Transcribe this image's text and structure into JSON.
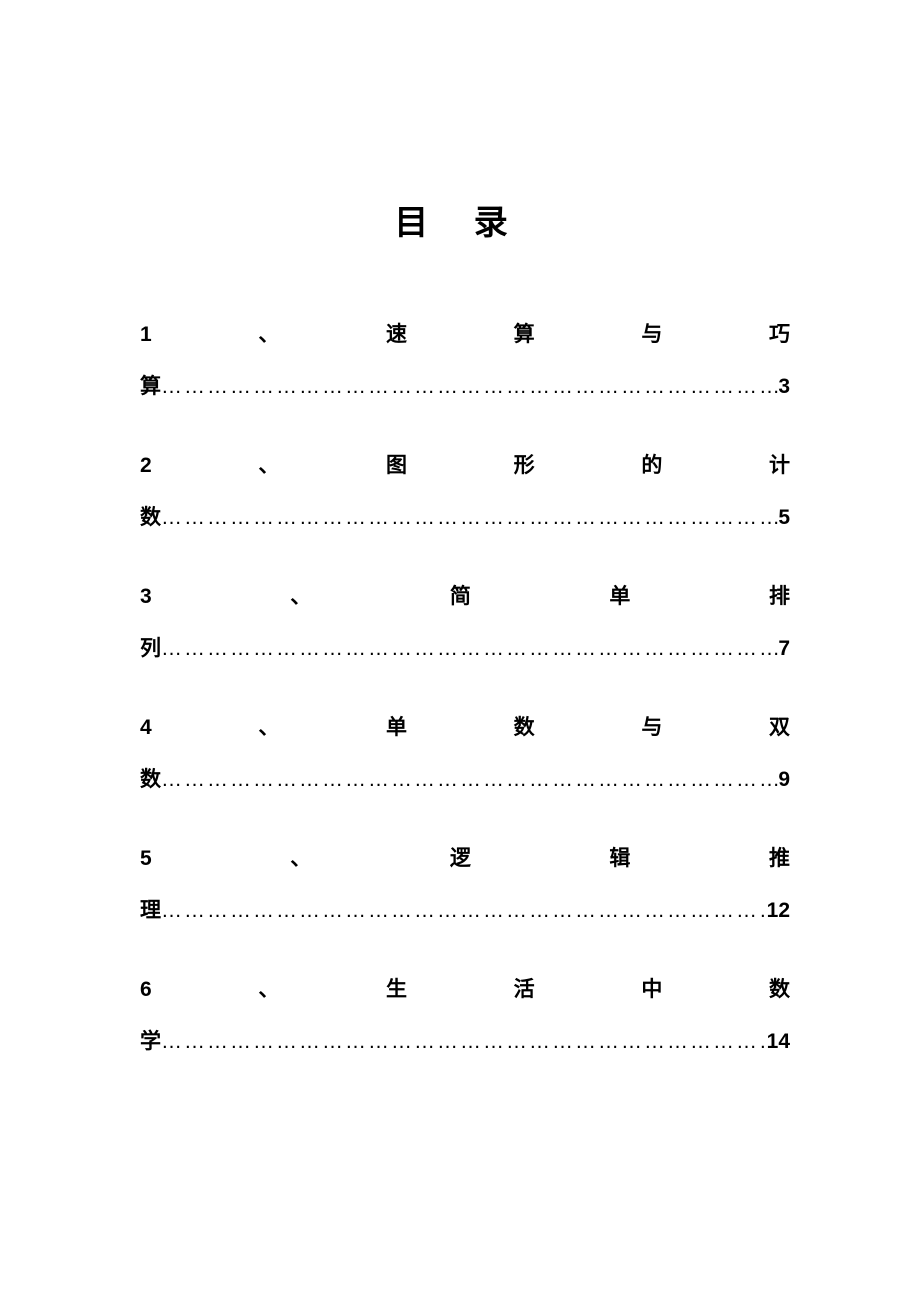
{
  "title": "目 录",
  "entries": [
    {
      "number": "1",
      "separator": "、",
      "line1_chars": [
        "速",
        "算",
        "与",
        "巧"
      ],
      "line2_prefix": "算",
      "page": "3"
    },
    {
      "number": "2",
      "separator": "、",
      "line1_chars": [
        "图",
        "形",
        "的",
        "计"
      ],
      "line2_prefix": "数",
      "page": "5"
    },
    {
      "number": "3",
      "separator": "、",
      "line1_chars": [
        "简",
        "单",
        "排"
      ],
      "line2_prefix": "列",
      "page": "7"
    },
    {
      "number": "4",
      "separator": "、",
      "line1_chars": [
        "单",
        "数",
        "与",
        "双"
      ],
      "line2_prefix": "数",
      "page": "9"
    },
    {
      "number": "5",
      "separator": "、",
      "line1_chars": [
        "逻",
        "辑",
        "推"
      ],
      "line2_prefix": "理",
      "page": "12"
    },
    {
      "number": "6",
      "separator": "、",
      "line1_chars": [
        "生",
        "活",
        "中",
        "数"
      ],
      "line2_prefix": "学",
      "page": "14"
    }
  ],
  "dots": "…………………………………………………………………………………………………"
}
